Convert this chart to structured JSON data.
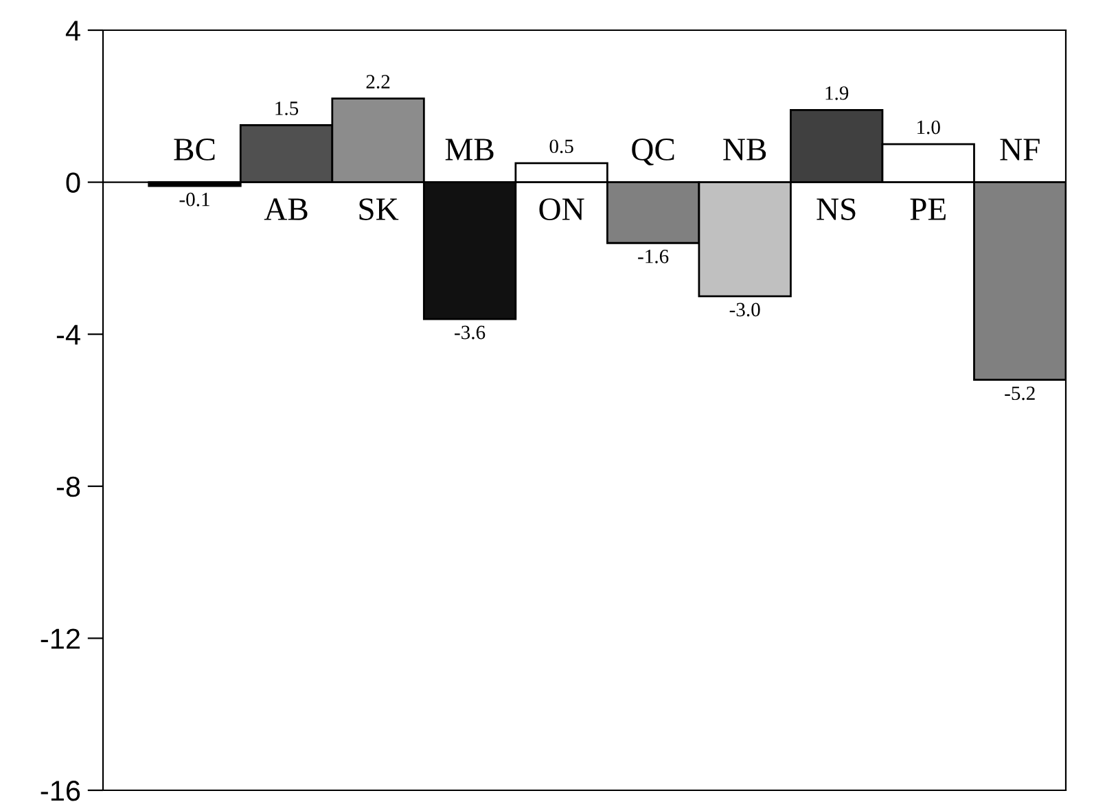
{
  "chart_data": {
    "type": "bar",
    "categories": [
      "BC",
      "AB",
      "SK",
      "MB",
      "ON",
      "QC",
      "NB",
      "NS",
      "PE",
      "NF"
    ],
    "values": [
      -0.1,
      1.5,
      2.2,
      -3.6,
      0.5,
      -1.6,
      -3.0,
      1.9,
      1.0,
      -5.2
    ],
    "value_labels": [
      "-0.1",
      "1.5",
      "2.2",
      "-3.6",
      "0.5",
      "-1.6",
      "-3.0",
      "1.9",
      "1.0",
      "-5.2"
    ],
    "colors": [
      "#000000",
      "#505050",
      "#8c8c8c",
      "#111111",
      "#ffffff",
      "#808080",
      "#c0c0c0",
      "#404040",
      "#ffffff",
      "#808080"
    ],
    "ylim": [
      -16,
      4
    ],
    "yticks": [
      4,
      0,
      -4,
      -8,
      -12,
      -16
    ],
    "grid": false,
    "legend": false
  }
}
